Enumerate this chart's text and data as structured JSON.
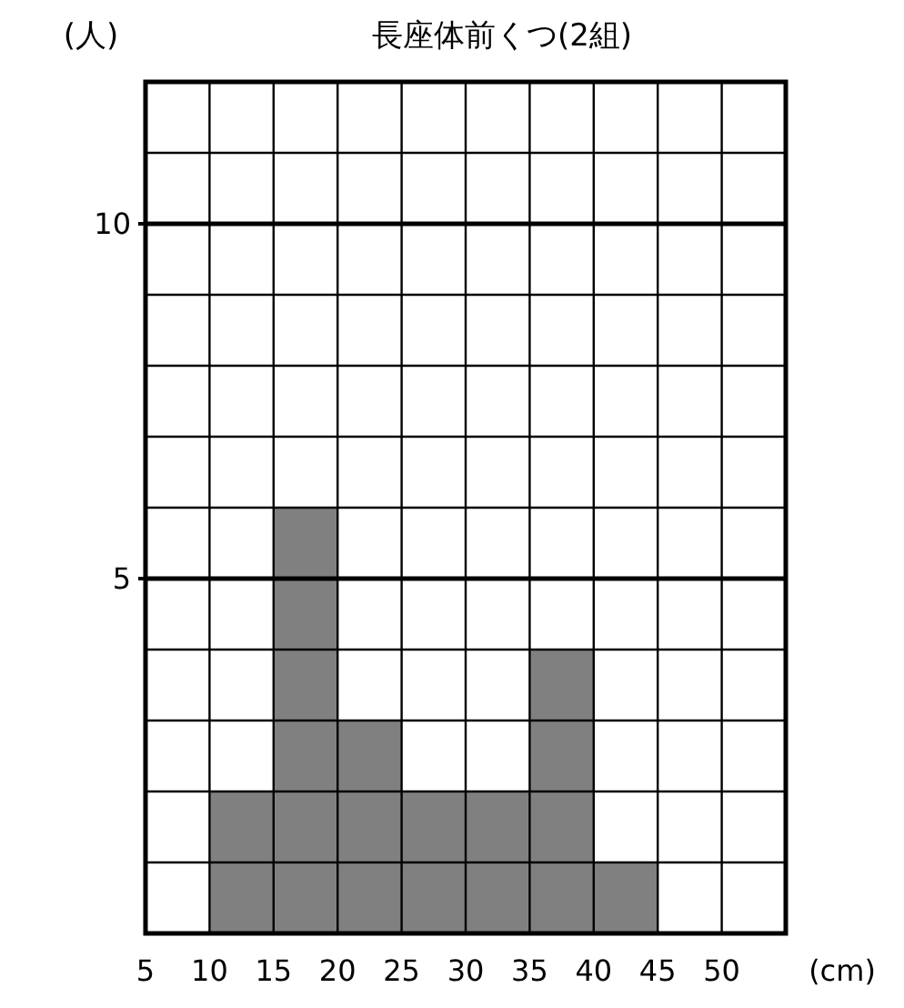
{
  "chart_data": {
    "type": "histogram",
    "title": "長座体前くつ(2組)",
    "ylabel": "(人)",
    "xlabel": "(cm)",
    "bins": [
      5,
      10,
      15,
      20,
      25,
      30,
      35,
      40,
      45,
      50,
      55
    ],
    "values": [
      0,
      2,
      6,
      3,
      2,
      2,
      4,
      1,
      0,
      0
    ],
    "color": "#808080",
    "xlim": [
      5,
      55
    ],
    "xticks": [
      5,
      10,
      15,
      20,
      25,
      30,
      35,
      40,
      45,
      50
    ],
    "ylim": [
      0,
      12
    ],
    "yticks": [
      5,
      10
    ],
    "grid": true
  }
}
